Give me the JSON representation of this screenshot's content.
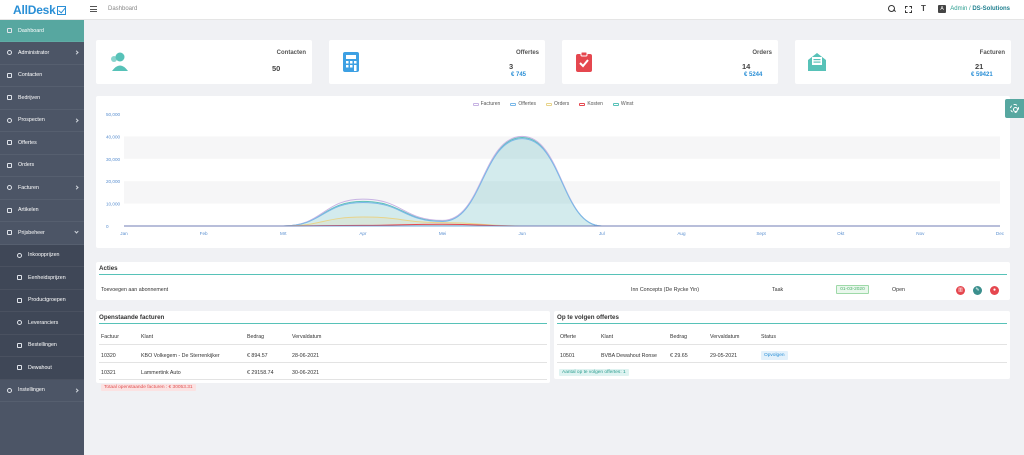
{
  "app": {
    "logo": "AllDesk",
    "breadcrumb": "Dashboard",
    "user_role": "Admin",
    "user_sep": " / ",
    "user_org": "DS-Solutions"
  },
  "topbar": {
    "icons": [
      "search-icon",
      "fullscreen-icon",
      "font-size-icon",
      "translate-icon"
    ]
  },
  "sidebar": {
    "items": [
      {
        "label": "Dashboard",
        "icon": "home-icon",
        "active": true
      },
      {
        "label": "Administrator",
        "icon": "admin-icon",
        "arrow": "right"
      },
      {
        "label": "Contacten",
        "icon": "contacts-icon"
      },
      {
        "label": "Bedrijven",
        "icon": "building-icon"
      },
      {
        "label": "Prospecten",
        "icon": "share-icon",
        "arrow": "right"
      },
      {
        "label": "Offertes",
        "icon": "calculator-icon"
      },
      {
        "label": "Orders",
        "icon": "orders-icon"
      },
      {
        "label": "Facturen",
        "icon": "invoice-icon",
        "arrow": "right"
      },
      {
        "label": "Artikelen",
        "icon": "article-icon"
      },
      {
        "label": "Prijsbeheer",
        "icon": "euro-icon",
        "arrow": "down"
      },
      {
        "label": "Inkoopprijzen",
        "icon": "euro-icon",
        "sub": true
      },
      {
        "label": "Eenheidsprijzen",
        "icon": "euro-icon",
        "sub": true
      },
      {
        "label": "Productgroepen",
        "icon": "database-icon",
        "sub": true
      },
      {
        "label": "Leveranciers",
        "icon": "truck-icon",
        "sub": true
      },
      {
        "label": "Bestellingen",
        "icon": "copy-icon",
        "sub": true
      },
      {
        "label": "Dewahout",
        "icon": "external-link-icon",
        "sub": true
      },
      {
        "label": "Instellingen",
        "icon": "settings-icon",
        "arrow": "right"
      }
    ]
  },
  "stats": [
    {
      "title": "Contacten",
      "value": "50",
      "sub": "",
      "icon": "users-icon",
      "color": "#57c2b8"
    },
    {
      "title": "Offertes",
      "value": "3",
      "sub": "€ 745",
      "icon": "calculator-icon",
      "color": "#3da0e3"
    },
    {
      "title": "Orders",
      "value": "14",
      "sub": "€ 5244",
      "icon": "clipboard-check-icon",
      "color": "#e5474f"
    },
    {
      "title": "Facturen",
      "value": "21",
      "sub": "€ 59421",
      "icon": "mail-open-icon",
      "color": "#57c2b8"
    }
  ],
  "chart_data": {
    "type": "area",
    "categories": [
      "Jan",
      "Feb",
      "Mrt",
      "Apr",
      "Mei",
      "Jun",
      "Jul",
      "Aug",
      "Sept",
      "Okt",
      "Nov",
      "Dec"
    ],
    "y_ticks": [
      "0",
      "10,000",
      "20,000",
      "30,000",
      "40,000",
      "50,000"
    ],
    "ylim": [
      0,
      50000
    ],
    "series": [
      {
        "name": "Facturen",
        "color": "#c7b3e3",
        "values": [
          0,
          0,
          0,
          12000,
          2500,
          40000,
          0,
          0,
          0,
          0,
          0,
          0
        ]
      },
      {
        "name": "Offertes",
        "color": "#7ab8e8",
        "values": [
          0,
          0,
          0,
          10500,
          2000,
          39000,
          0,
          0,
          0,
          0,
          0,
          0
        ]
      },
      {
        "name": "Orders",
        "color": "#e8d48a",
        "values": [
          0,
          0,
          0,
          4000,
          1500,
          0,
          0,
          0,
          0,
          0,
          0,
          0
        ]
      },
      {
        "name": "Kosten",
        "color": "#e5474f",
        "values": [
          0,
          0,
          0,
          300,
          800,
          0,
          0,
          0,
          0,
          0,
          0,
          0
        ]
      },
      {
        "name": "Winst",
        "color": "#57c2b8",
        "values": [
          0,
          0,
          0,
          11000,
          2200,
          39500,
          0,
          0,
          0,
          0,
          0,
          0
        ]
      }
    ],
    "legend": "top-center",
    "grid": true
  },
  "acties": {
    "title": "Acties",
    "row": {
      "description": "Toevoegen aan abonnement",
      "contact": "Inn Concepts (De Rycke Yin)",
      "type": "Taak",
      "date": "01-03-2020",
      "status": "Open"
    }
  },
  "facturen": {
    "title": "Openstaande facturen",
    "columns": [
      "Factuur",
      "Klant",
      "Bedrag",
      "Vervaldatum"
    ],
    "rows": [
      [
        "10320",
        "KBO Volkegem - De Sterrenkijker",
        "€ 894.57",
        "28-06-2021"
      ],
      [
        "10321",
        "Lammertink Auto",
        "€ 29158.74",
        "30-06-2021"
      ]
    ],
    "total": "Totaal openstaande facturen : € 30053.31"
  },
  "offertes": {
    "title": "Op te volgen offertes",
    "columns": [
      "Offerte",
      "Klant",
      "Bedrag",
      "Vervaldatum",
      "Status"
    ],
    "rows": [
      [
        "10501",
        "BVBA Dewahout Ronse",
        "€ 29.65",
        "29-05-2021",
        "Opvolgen"
      ]
    ],
    "count": "Aantal op te volgen offertes: 1"
  }
}
